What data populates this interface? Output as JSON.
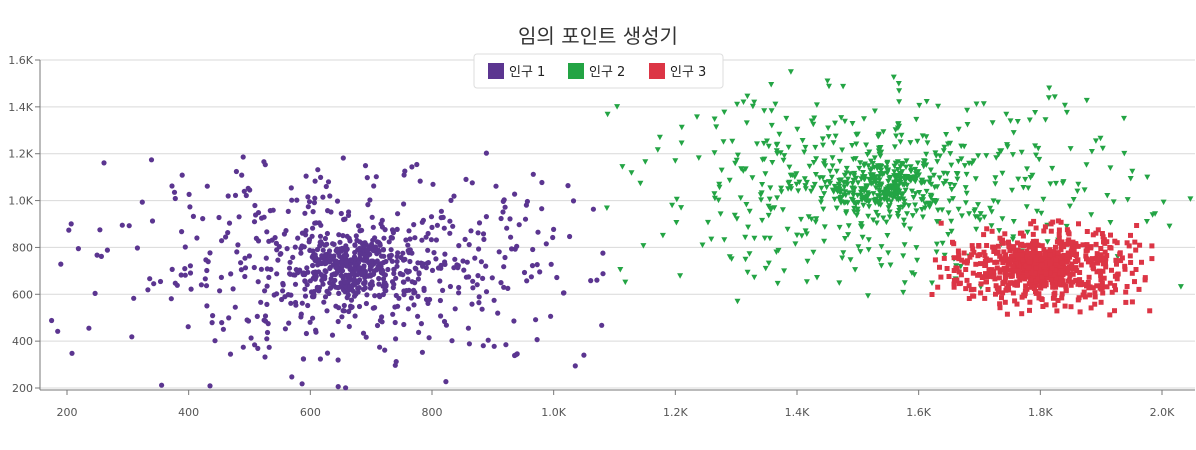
{
  "chart_data": {
    "type": "scatter",
    "title": "임의 포인트 생성기",
    "xlabel": "",
    "ylabel": "",
    "xlim": [
      160,
      2055
    ],
    "ylim": [
      190,
      1600
    ],
    "x_ticks": [
      {
        "value": 200,
        "label": "200"
      },
      {
        "value": 400,
        "label": "400"
      },
      {
        "value": 600,
        "label": "600"
      },
      {
        "value": 800,
        "label": "800"
      },
      {
        "value": 1000,
        "label": "1.0K"
      },
      {
        "value": 1200,
        "label": "1.2K"
      },
      {
        "value": 1400,
        "label": "1.4K"
      },
      {
        "value": 1600,
        "label": "1.6K"
      },
      {
        "value": 1800,
        "label": "1.8K"
      },
      {
        "value": 2000,
        "label": "2.0K"
      }
    ],
    "y_ticks": [
      {
        "value": 200,
        "label": "200"
      },
      {
        "value": 400,
        "label": "400"
      },
      {
        "value": 600,
        "label": "600"
      },
      {
        "value": 800,
        "label": "800"
      },
      {
        "value": 1000,
        "label": "1.0K"
      },
      {
        "value": 1200,
        "label": "1.2K"
      },
      {
        "value": 1400,
        "label": "1.4K"
      },
      {
        "value": 1600,
        "label": "1.6K"
      }
    ],
    "grid": "horizontal",
    "legend_position": "top-center",
    "series": [
      {
        "name": "인구 1",
        "color": "#5b3590",
        "marker": "circle",
        "count": 900,
        "center": [
          670,
          715
        ],
        "x_range": [
          165,
          1090
        ],
        "y_range": [
          200,
          1240
        ]
      },
      {
        "name": "인구 2",
        "color": "#23a444",
        "marker": "triangle-down",
        "count": 800,
        "center": [
          1545,
          1060
        ],
        "x_range": [
          1080,
          2050
        ],
        "y_range": [
          520,
          1550
        ]
      },
      {
        "name": "인구 3",
        "color": "#dc3545",
        "marker": "square",
        "count": 1000,
        "center": [
          1800,
          715
        ],
        "x_range": [
          1620,
          1990
        ],
        "y_range": [
          510,
          920
        ]
      }
    ]
  }
}
